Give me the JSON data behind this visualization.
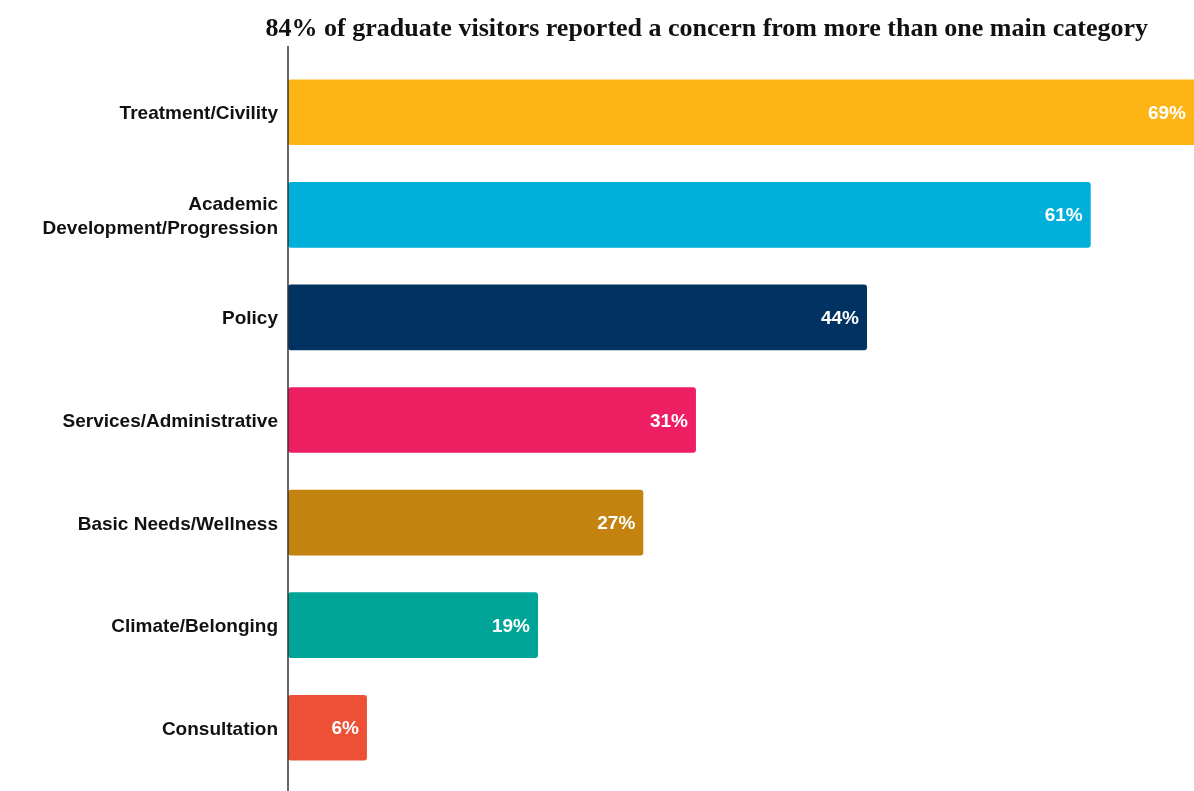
{
  "chart_data": {
    "type": "bar",
    "orientation": "horizontal",
    "subtitle": "84% of graduate visitors reported a concern from more than one main category",
    "categories": [
      "Treatment/Civility",
      "Academic\nDevelopment/Progression",
      "Policy",
      "Services/Administrative",
      "Basic Needs/Wellness",
      "Climate/Belonging",
      "Consultation"
    ],
    "values": [
      69,
      61,
      44,
      31,
      27,
      19,
      6
    ],
    "colors": [
      "#fdb515",
      "#00b0da",
      "#003262",
      "#ed1e62",
      "#c4820e",
      "#00a598",
      "#ee5035"
    ],
    "value_labels": [
      "69%",
      "61%",
      "44%",
      "31%",
      "27%",
      "19%",
      "6%"
    ]
  }
}
